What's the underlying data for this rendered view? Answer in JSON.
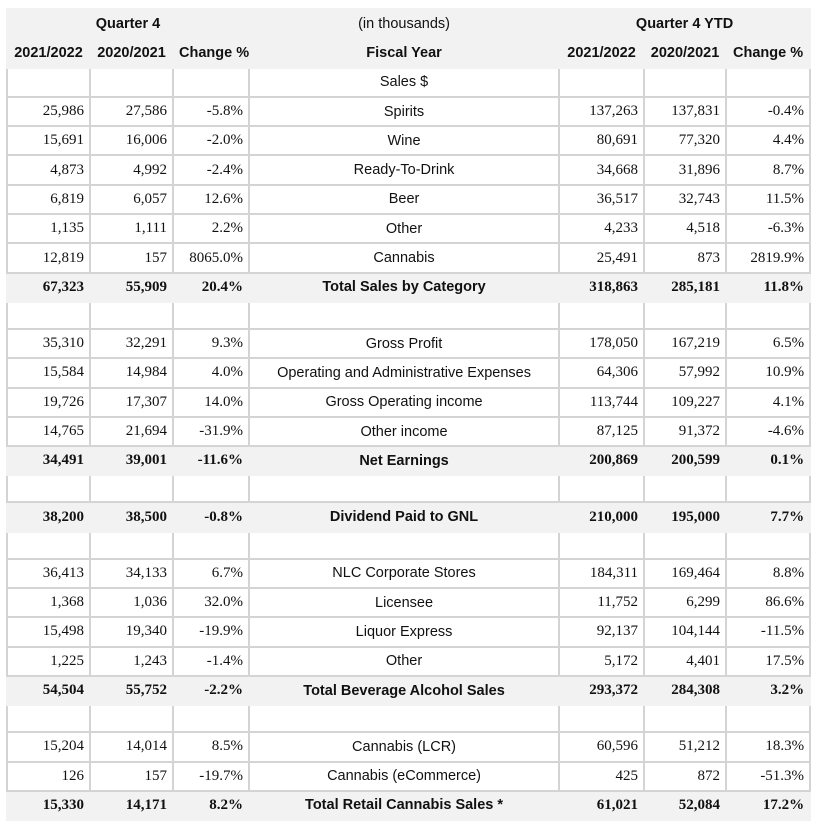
{
  "header": {
    "quarter": "Quarter 4",
    "units": "(in thousands)",
    "ytd": "Quarter 4 YTD",
    "fiscal_year": "Fiscal Year",
    "cols": [
      "2021/2022",
      "2020/2021",
      "Change %",
      "2021/2022",
      "2020/2021",
      "Change %"
    ]
  },
  "rows": [
    {
      "type": "section",
      "label": "Sales $",
      "v": [
        "",
        "",
        "",
        "",
        "",
        ""
      ]
    },
    {
      "type": "data",
      "label": "Spirits",
      "v": [
        "25,986",
        "27,586",
        "-5.8%",
        "137,263",
        "137,831",
        "-0.4%"
      ]
    },
    {
      "type": "data",
      "label": "Wine",
      "v": [
        "15,691",
        "16,006",
        "-2.0%",
        "80,691",
        "77,320",
        "4.4%"
      ]
    },
    {
      "type": "data",
      "label": "Ready-To-Drink",
      "v": [
        "4,873",
        "4,992",
        "-2.4%",
        "34,668",
        "31,896",
        "8.7%"
      ]
    },
    {
      "type": "data",
      "label": "Beer",
      "v": [
        "6,819",
        "6,057",
        "12.6%",
        "36,517",
        "32,743",
        "11.5%"
      ]
    },
    {
      "type": "data",
      "label": "Other",
      "v": [
        "1,135",
        "1,111",
        "2.2%",
        "4,233",
        "4,518",
        "-6.3%"
      ]
    },
    {
      "type": "data",
      "label": "Cannabis",
      "v": [
        "12,819",
        "157",
        "8065.0%",
        "25,491",
        "873",
        "2819.9%"
      ]
    },
    {
      "type": "total",
      "label": "Total Sales by Category",
      "v": [
        "67,323",
        "55,909",
        "20.4%",
        "318,863",
        "285,181",
        "11.8%"
      ]
    },
    {
      "type": "blank",
      "label": "",
      "v": [
        "",
        "",
        "",
        "",
        "",
        ""
      ]
    },
    {
      "type": "data",
      "label": "Gross Profit",
      "v": [
        "35,310",
        "32,291",
        "9.3%",
        "178,050",
        "167,219",
        "6.5%"
      ]
    },
    {
      "type": "data",
      "label": "Operating and Administrative Expenses",
      "v": [
        "15,584",
        "14,984",
        "4.0%",
        "64,306",
        "57,992",
        "10.9%"
      ]
    },
    {
      "type": "data",
      "label": "Gross Operating income",
      "v": [
        "19,726",
        "17,307",
        "14.0%",
        "113,744",
        "109,227",
        "4.1%"
      ]
    },
    {
      "type": "data",
      "label": "Other income",
      "v": [
        "14,765",
        "21,694",
        "-31.9%",
        "87,125",
        "91,372",
        "-4.6%"
      ]
    },
    {
      "type": "total",
      "label": "Net Earnings",
      "v": [
        "34,491",
        "39,001",
        "-11.6%",
        "200,869",
        "200,599",
        "0.1%"
      ]
    },
    {
      "type": "blank",
      "label": "",
      "v": [
        "",
        "",
        "",
        "",
        "",
        ""
      ]
    },
    {
      "type": "total",
      "label": "Dividend Paid to GNL",
      "v": [
        "38,200",
        "38,500",
        "-0.8%",
        "210,000",
        "195,000",
        "7.7%"
      ]
    },
    {
      "type": "blank",
      "label": "",
      "v": [
        "",
        "",
        "",
        "",
        "",
        ""
      ]
    },
    {
      "type": "data",
      "label": "NLC Corporate Stores",
      "v": [
        "36,413",
        "34,133",
        "6.7%",
        "184,311",
        "169,464",
        "8.8%"
      ]
    },
    {
      "type": "data",
      "label": "Licensee",
      "v": [
        "1,368",
        "1,036",
        "32.0%",
        "11,752",
        "6,299",
        "86.6%"
      ]
    },
    {
      "type": "data",
      "label": "Liquor Express",
      "v": [
        "15,498",
        "19,340",
        "-19.9%",
        "92,137",
        "104,144",
        "-11.5%"
      ]
    },
    {
      "type": "data",
      "label": "Other",
      "v": [
        "1,225",
        "1,243",
        "-1.4%",
        "5,172",
        "4,401",
        "17.5%"
      ]
    },
    {
      "type": "total",
      "label": "Total Beverage Alcohol Sales",
      "v": [
        "54,504",
        "55,752",
        "-2.2%",
        "293,372",
        "284,308",
        "3.2%"
      ]
    },
    {
      "type": "blank",
      "label": "",
      "v": [
        "",
        "",
        "",
        "",
        "",
        ""
      ]
    },
    {
      "type": "data",
      "label": "Cannabis (LCR)",
      "v": [
        "15,204",
        "14,014",
        "8.5%",
        "60,596",
        "51,212",
        "18.3%"
      ]
    },
    {
      "type": "data",
      "label": "Cannabis (eCommerce)",
      "v": [
        "126",
        "157",
        "-19.7%",
        "425",
        "872",
        "-51.3%"
      ]
    },
    {
      "type": "total",
      "label": "Total Retail Cannabis Sales *",
      "v": [
        "15,330",
        "14,171",
        "8.2%",
        "61,021",
        "52,084",
        "17.2%"
      ]
    }
  ]
}
